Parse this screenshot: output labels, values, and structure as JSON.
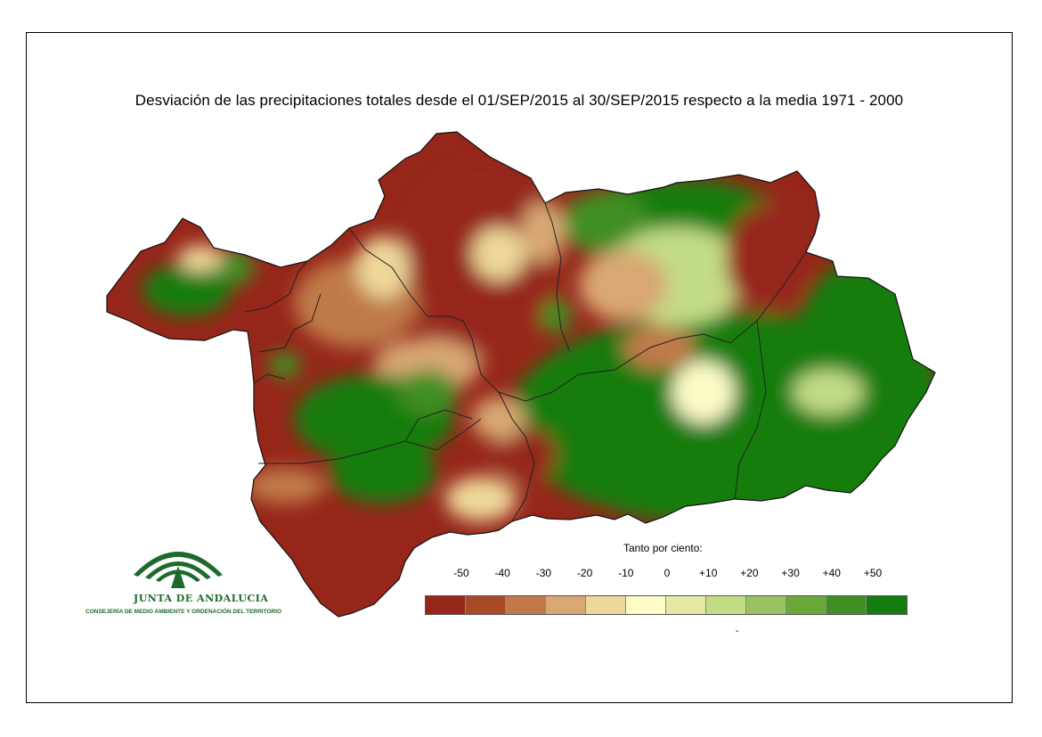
{
  "map": {
    "title": "Desviación de las precipitaciones totales desde el 01/SEP/2015 al 30/SEP/2015 respecto a la media 1971 - 2000"
  },
  "legend": {
    "title": "Tanto por ciento:",
    "ticks": [
      "-50",
      "-40",
      "-30",
      "-20",
      "-10",
      "0",
      "+10",
      "+20",
      "+30",
      "+40",
      "+50"
    ],
    "colors": [
      "#96261a",
      "#a84a25",
      "#c07a4a",
      "#d8a773",
      "#eed79a",
      "#fdfbc8",
      "#e6e9a5",
      "#c3dc86",
      "#98c360",
      "#6aa83a",
      "#3f8f24",
      "#157d10"
    ],
    "footer_mark": "-"
  },
  "logo": {
    "name": "JUNTA DE ANDALUCIA",
    "subtitle": "CONSEJERÍA DE MEDIO AMBIENTE Y ORDENACIÓN DEL TERRITORIO",
    "color": "#1d6b2c"
  }
}
